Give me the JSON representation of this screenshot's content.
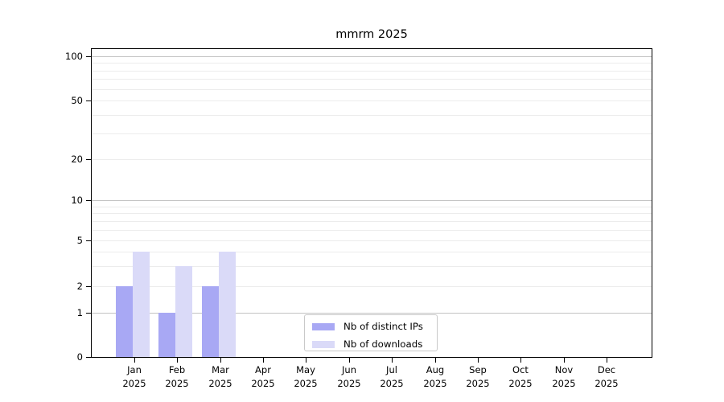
{
  "chart_data": {
    "type": "bar",
    "title": "mmrm 2025",
    "x_year": "2025",
    "x_categories": [
      "Jan",
      "Feb",
      "Mar",
      "Apr",
      "May",
      "Jun",
      "Jul",
      "Aug",
      "Sep",
      "Oct",
      "Nov",
      "Dec"
    ],
    "series": [
      {
        "name": "Nb of distinct IPs",
        "color": "#a8a8f4",
        "values": [
          2,
          1,
          2,
          0,
          0,
          0,
          0,
          0,
          0,
          0,
          0,
          0
        ]
      },
      {
        "name": "Nb of downloads",
        "color": "#dadaf8",
        "values": [
          4,
          3,
          4,
          0,
          0,
          0,
          0,
          0,
          0,
          0,
          0,
          0
        ]
      }
    ],
    "y_scale": "log",
    "ylim": [
      0,
      120
    ],
    "y_ticks": [
      0,
      1,
      2,
      5,
      10,
      20,
      50,
      100
    ],
    "y_decade_ticks": [
      1,
      10,
      100
    ],
    "y_minor_gridlines": [
      3,
      4,
      6,
      7,
      8,
      9,
      30,
      40,
      60,
      70,
      80,
      90
    ],
    "grid": true,
    "legend_position": "lower center"
  }
}
